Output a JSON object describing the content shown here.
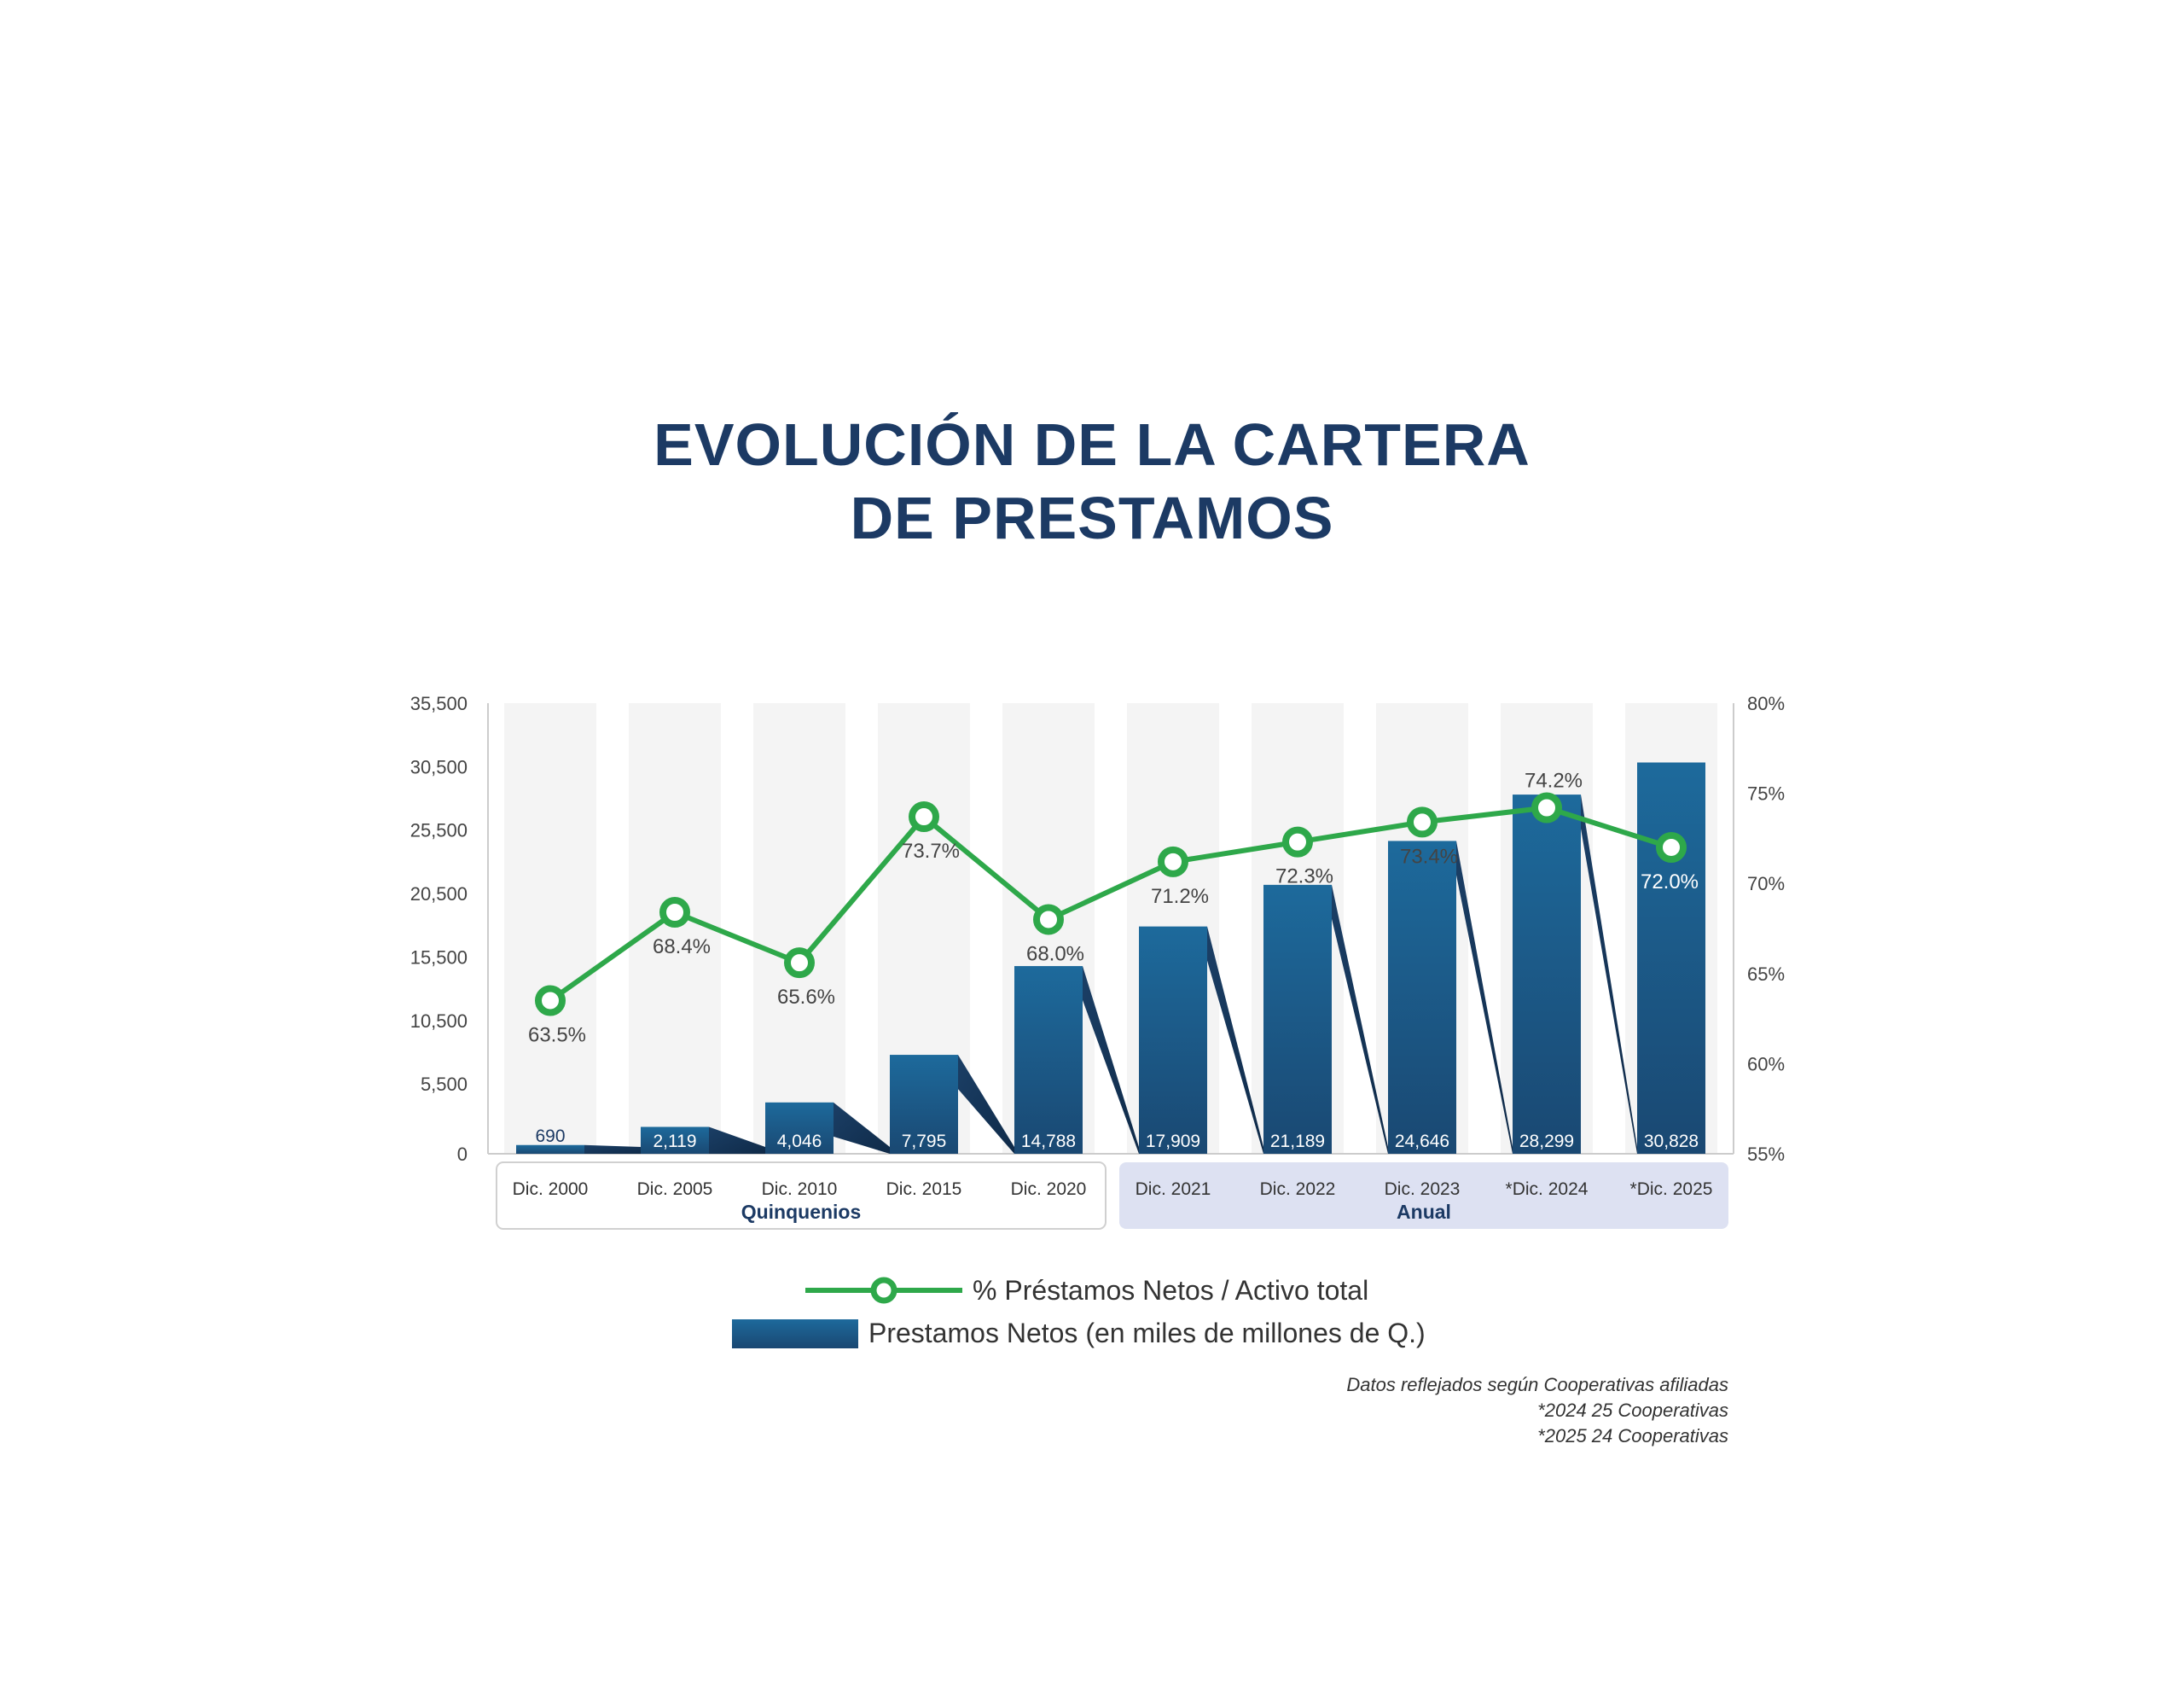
{
  "title": {
    "line1": "EVOLUCIÓN DE LA CARTERA",
    "line2": "DE PRESTAMOS"
  },
  "colors": {
    "title": "#1c3a64",
    "bar_top": "#1d6a9c",
    "bar_bottom": "#1a4872",
    "line": "#2ea84a",
    "column_band": "#f4f4f4",
    "group_anual_bg": "#dde1f2",
    "axis_text": "#444444"
  },
  "chart_data": {
    "type": "bar",
    "categories": [
      "Dic. 2000",
      "Dic. 2005",
      "Dic. 2010",
      "Dic. 2015",
      "Dic. 2020",
      "Dic. 2021",
      "Dic. 2022",
      "Dic. 2023",
      "*Dic. 2024",
      "*Dic. 2025"
    ],
    "groups": [
      {
        "label": "Quinquenios",
        "from": 0,
        "to": 4
      },
      {
        "label": "Anual",
        "from": 5,
        "to": 9
      }
    ],
    "series": [
      {
        "name": "Prestamos Netos (en miles de millones de Q.)",
        "type": "bar",
        "axis": "left",
        "values": [
          690,
          2119,
          4046,
          7795,
          14788,
          17909,
          21189,
          24646,
          28299,
          30828
        ],
        "labels": [
          "690",
          "2,119",
          "4,046",
          "7,795",
          "14,788",
          "17,909",
          "21,189",
          "24,646",
          "28,299",
          "30,828"
        ]
      },
      {
        "name": "% Préstamos Netos / Activo total",
        "type": "line",
        "axis": "right",
        "values": [
          63.5,
          68.4,
          65.6,
          73.7,
          68.0,
          71.2,
          72.3,
          73.4,
          74.2,
          72.0
        ],
        "labels": [
          "63.5%",
          "68.4%",
          "65.6%",
          "73.7%",
          "68.0%",
          "71.2%",
          "72.3%",
          "73.4%",
          "74.2%",
          "72.0%"
        ]
      }
    ],
    "y_left": {
      "ylim": [
        0,
        35500
      ],
      "ticks": [
        0,
        5500,
        10500,
        15500,
        20500,
        25500,
        30500,
        35500
      ],
      "tick_labels": [
        "0",
        "5,500",
        "10,500",
        "15,500",
        "20,500",
        "25,500",
        "30,500",
        "35,500"
      ]
    },
    "y_right": {
      "ylim": [
        55,
        80
      ],
      "ticks": [
        55,
        60,
        65,
        70,
        75,
        80
      ],
      "tick_labels": [
        "55%",
        "60%",
        "65%",
        "70%",
        "75%",
        "80%"
      ]
    },
    "legend": {
      "position": "bottom",
      "items": [
        "% Préstamos Netos / Activo total",
        "Prestamos Netos (en miles de millones de Q.)"
      ]
    },
    "grid": false
  },
  "footnotes": {
    "line1": "Datos reflejados según Cooperativas afiliadas",
    "line2": "*2024 25 Cooperativas",
    "line3": "*2025 24 Cooperativas"
  }
}
